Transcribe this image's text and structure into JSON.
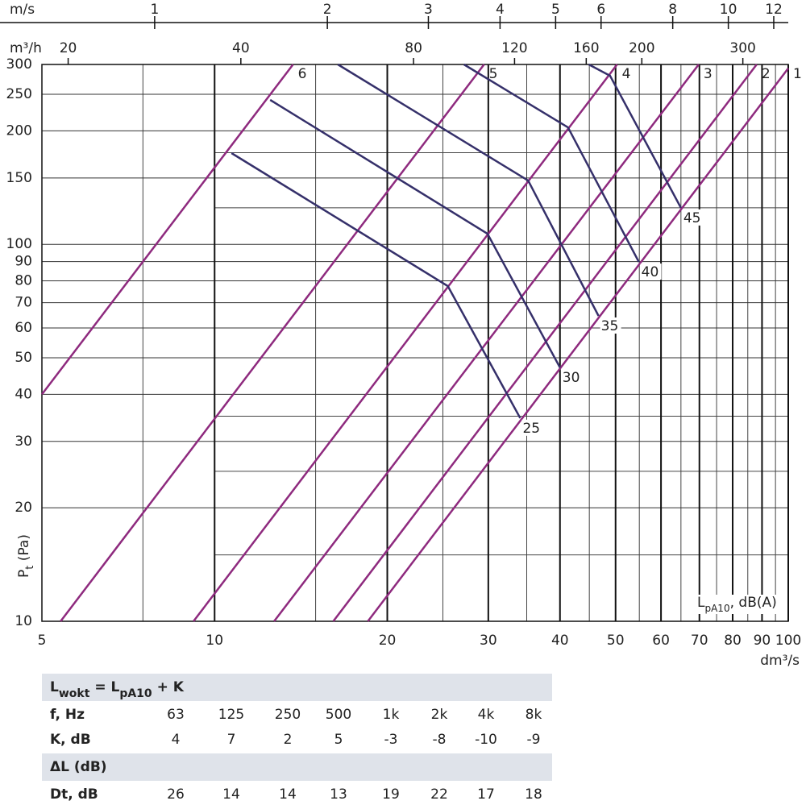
{
  "chart_data": {
    "type": "line",
    "xlog": true,
    "ylog": true,
    "xlabel": "dm³/s",
    "ylabel": [
      {
        "text": "P",
        "sub": "t"
      },
      {
        "text": " (Pa)"
      }
    ],
    "xlim": [
      5,
      100
    ],
    "xticks": [
      5,
      10,
      20,
      30,
      40,
      50,
      60,
      70,
      80,
      90,
      100
    ],
    "x_minor_grid": [
      7.5,
      15,
      25,
      35,
      45,
      55,
      65,
      75,
      85,
      95
    ],
    "ylim": [
      10,
      300
    ],
    "yticks": [
      10,
      20,
      30,
      40,
      50,
      60,
      70,
      80,
      90,
      100,
      150,
      200,
      250,
      300
    ],
    "y_minor_grid": [
      15,
      25,
      35,
      125,
      175
    ],
    "top_axes": [
      {
        "label": "m/s",
        "xlim": [
          0.636,
          12.72
        ],
        "xticks": [
          1,
          2,
          3,
          4,
          5,
          6,
          8,
          10,
          12
        ]
      },
      {
        "label": "m³/h",
        "xlim": [
          18,
          360
        ],
        "xticks": [
          20,
          40,
          80,
          120,
          160,
          200,
          300
        ]
      }
    ],
    "annotation": [
      {
        "text": "L",
        "sub": "pA10"
      },
      {
        "text": ", dB(A)"
      }
    ],
    "series": [
      {
        "name": "1",
        "color": "#8e2a7e",
        "x": [
          18.5,
          100
        ],
        "values": [
          10,
          293
        ]
      },
      {
        "name": "2",
        "color": "#8e2a7e",
        "x": [
          16.1,
          88.1
        ],
        "values": [
          10,
          300
        ]
      },
      {
        "name": "3",
        "color": "#8e2a7e",
        "x": [
          12.7,
          69.8
        ],
        "values": [
          10,
          300
        ]
      },
      {
        "name": "4",
        "color": "#8e2a7e",
        "x": [
          9.19,
          50.3
        ],
        "values": [
          10,
          300
        ]
      },
      {
        "name": "5",
        "color": "#8e2a7e",
        "x": [
          5.39,
          29.5
        ],
        "values": [
          10,
          300
        ]
      },
      {
        "name": "6",
        "color": "#8e2a7e",
        "x": [
          5,
          13.7
        ],
        "values": [
          40,
          300
        ]
      },
      {
        "name": "25",
        "color": "#35306a",
        "x": [
          10.7,
          25.5,
          34.1
        ],
        "values": [
          174.6,
          77.5,
          34.6
        ]
      },
      {
        "name": "30",
        "color": "#35306a",
        "x": [
          12.5,
          29.9,
          40.0
        ],
        "values": [
          241.6,
          106.7,
          47.1
        ]
      },
      {
        "name": "35",
        "color": "#35306a",
        "x": [
          16.4,
          35.2,
          46.7
        ],
        "values": [
          300,
          147.6,
          64.6
        ]
      },
      {
        "name": "40",
        "color": "#35306a",
        "x": [
          27.2,
          41.3,
          54.9
        ],
        "values": [
          300,
          204.3,
          89.8
        ]
      },
      {
        "name": "45",
        "color": "#35306a",
        "x": [
          44.9,
          48.9,
          65.0
        ],
        "values": [
          300,
          280,
          125
        ]
      }
    ]
  },
  "table": {
    "sections": [
      {
        "title": [
          {
            "text": "L",
            "sub": "wokt"
          },
          {
            "text": " = L",
            "sub": "pA10"
          },
          {
            "text": " + K"
          }
        ],
        "rows": [
          {
            "label": "f, Hz",
            "values": [
              "63",
              "125",
              "250",
              "500",
              "1k",
              "2k",
              "4k",
              "8k"
            ]
          },
          {
            "label": "K, dB",
            "values": [
              4,
              7,
              2,
              5,
              -3,
              -8,
              -10,
              -9
            ]
          }
        ]
      },
      {
        "title": [
          {
            "text": "ΔL (dB)"
          }
        ],
        "rows": [
          {
            "label": "Dt, dB",
            "values": [
              26,
              14,
              14,
              13,
              19,
              22,
              17,
              18
            ]
          }
        ]
      }
    ]
  }
}
